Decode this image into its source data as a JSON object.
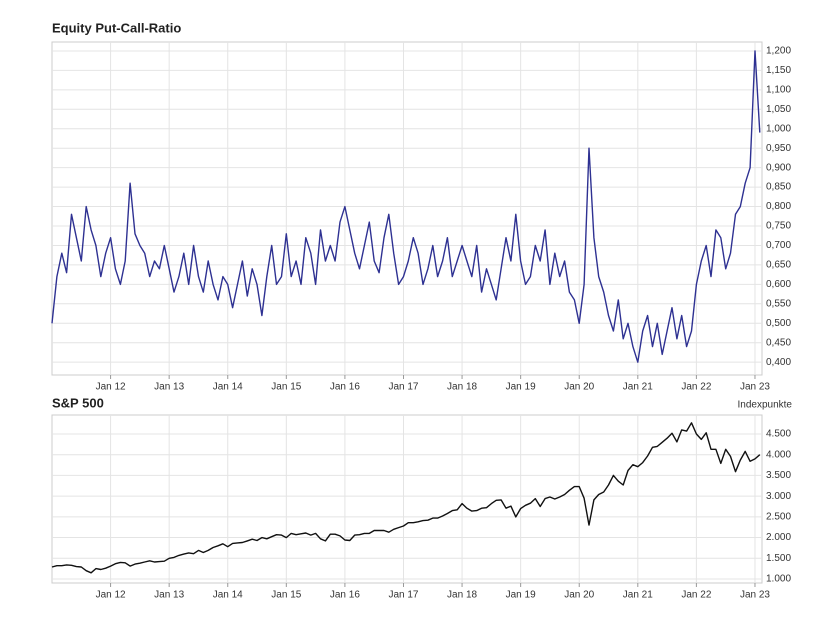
{
  "chart_data": [
    {
      "type": "line",
      "title": "Equity Put-Call-Ratio",
      "color": "#2e3192",
      "grid": true,
      "xlim": [
        2011.0,
        2023.12
      ],
      "ylim": [
        0.367,
        1.223
      ],
      "xticks": [
        {
          "value": 2012,
          "label": "Jan 12"
        },
        {
          "value": 2013,
          "label": "Jan 13"
        },
        {
          "value": 2014,
          "label": "Jan 14"
        },
        {
          "value": 2015,
          "label": "Jan 15"
        },
        {
          "value": 2016,
          "label": "Jan 16"
        },
        {
          "value": 2017,
          "label": "Jan 17"
        },
        {
          "value": 2018,
          "label": "Jan 18"
        },
        {
          "value": 2019,
          "label": "Jan 19"
        },
        {
          "value": 2020,
          "label": "Jan 20"
        },
        {
          "value": 2021,
          "label": "Jan 21"
        },
        {
          "value": 2022,
          "label": "Jan 22"
        },
        {
          "value": 2023,
          "label": "Jan 23"
        }
      ],
      "yticks": [
        {
          "value": 0.4,
          "label": "0,400"
        },
        {
          "value": 0.45,
          "label": "0,450"
        },
        {
          "value": 0.5,
          "label": "0,500"
        },
        {
          "value": 0.55,
          "label": "0,550"
        },
        {
          "value": 0.6,
          "label": "0,600"
        },
        {
          "value": 0.65,
          "label": "0,650"
        },
        {
          "value": 0.7,
          "label": "0,700"
        },
        {
          "value": 0.75,
          "label": "0,750"
        },
        {
          "value": 0.8,
          "label": "0,800"
        },
        {
          "value": 0.85,
          "label": "0,850"
        },
        {
          "value": 0.9,
          "label": "0,900"
        },
        {
          "value": 0.95,
          "label": "0,950"
        },
        {
          "value": 1.0,
          "label": "1,000"
        },
        {
          "value": 1.05,
          "label": "1,050"
        },
        {
          "value": 1.1,
          "label": "1,100"
        },
        {
          "value": 1.15,
          "label": "1,150"
        },
        {
          "value": 1.2,
          "label": "1,200"
        }
      ],
      "x": [
        2011,
        2011.083,
        2011.167,
        2011.25,
        2011.333,
        2011.417,
        2011.5,
        2011.583,
        2011.667,
        2011.75,
        2011.833,
        2011.917,
        2012,
        2012.083,
        2012.167,
        2012.25,
        2012.333,
        2012.417,
        2012.5,
        2012.583,
        2012.667,
        2012.75,
        2012.833,
        2012.917,
        2013,
        2013.083,
        2013.167,
        2013.25,
        2013.333,
        2013.417,
        2013.5,
        2013.583,
        2013.667,
        2013.75,
        2013.833,
        2013.917,
        2014,
        2014.083,
        2014.167,
        2014.25,
        2014.333,
        2014.417,
        2014.5,
        2014.583,
        2014.667,
        2014.75,
        2014.833,
        2014.917,
        2015,
        2015.083,
        2015.167,
        2015.25,
        2015.333,
        2015.417,
        2015.5,
        2015.583,
        2015.667,
        2015.75,
        2015.833,
        2015.917,
        2016,
        2016.083,
        2016.167,
        2016.25,
        2016.333,
        2016.417,
        2016.5,
        2016.583,
        2016.667,
        2016.75,
        2016.833,
        2016.917,
        2017,
        2017.083,
        2017.167,
        2017.25,
        2017.333,
        2017.417,
        2017.5,
        2017.583,
        2017.667,
        2017.75,
        2017.833,
        2017.917,
        2018,
        2018.083,
        2018.167,
        2018.25,
        2018.333,
        2018.417,
        2018.5,
        2018.583,
        2018.667,
        2018.75,
        2018.833,
        2018.917,
        2019,
        2019.083,
        2019.167,
        2019.25,
        2019.333,
        2019.417,
        2019.5,
        2019.583,
        2019.667,
        2019.75,
        2019.833,
        2019.917,
        2020,
        2020.083,
        2020.167,
        2020.25,
        2020.333,
        2020.417,
        2020.5,
        2020.583,
        2020.667,
        2020.75,
        2020.833,
        2020.917,
        2021,
        2021.083,
        2021.167,
        2021.25,
        2021.333,
        2021.417,
        2021.5,
        2021.583,
        2021.667,
        2021.75,
        2021.833,
        2021.917,
        2022,
        2022.083,
        2022.167,
        2022.25,
        2022.333,
        2022.417,
        2022.5,
        2022.583,
        2022.667,
        2022.75,
        2022.833,
        2022.917,
        2023,
        2023.083
      ],
      "values": [
        0.5,
        0.62,
        0.68,
        0.63,
        0.78,
        0.72,
        0.66,
        0.8,
        0.74,
        0.7,
        0.62,
        0.68,
        0.72,
        0.64,
        0.6,
        0.66,
        0.86,
        0.73,
        0.7,
        0.68,
        0.62,
        0.66,
        0.64,
        0.7,
        0.64,
        0.58,
        0.62,
        0.68,
        0.6,
        0.7,
        0.62,
        0.58,
        0.66,
        0.6,
        0.56,
        0.62,
        0.6,
        0.54,
        0.6,
        0.66,
        0.57,
        0.64,
        0.6,
        0.52,
        0.62,
        0.7,
        0.6,
        0.62,
        0.73,
        0.62,
        0.66,
        0.6,
        0.72,
        0.68,
        0.6,
        0.74,
        0.66,
        0.7,
        0.66,
        0.76,
        0.8,
        0.74,
        0.68,
        0.64,
        0.7,
        0.76,
        0.66,
        0.63,
        0.72,
        0.78,
        0.68,
        0.6,
        0.62,
        0.66,
        0.72,
        0.68,
        0.6,
        0.64,
        0.7,
        0.62,
        0.66,
        0.72,
        0.62,
        0.66,
        0.7,
        0.66,
        0.62,
        0.7,
        0.58,
        0.64,
        0.6,
        0.56,
        0.64,
        0.72,
        0.66,
        0.78,
        0.66,
        0.6,
        0.62,
        0.7,
        0.66,
        0.74,
        0.6,
        0.68,
        0.62,
        0.66,
        0.58,
        0.56,
        0.5,
        0.6,
        0.95,
        0.72,
        0.62,
        0.58,
        0.52,
        0.48,
        0.56,
        0.46,
        0.5,
        0.44,
        0.4,
        0.48,
        0.52,
        0.44,
        0.5,
        0.42,
        0.48,
        0.54,
        0.46,
        0.52,
        0.44,
        0.48,
        0.6,
        0.66,
        0.7,
        0.62,
        0.74,
        0.72,
        0.64,
        0.68,
        0.78,
        0.8,
        0.86,
        0.9,
        1.2,
        0.99
      ]
    },
    {
      "type": "line",
      "title": "S&P 500",
      "y_unit": "Indexpunkte",
      "color": "#111111",
      "grid": true,
      "xlim": [
        2011.0,
        2023.12
      ],
      "ylim": [
        903,
        4959
      ],
      "xticks": [
        {
          "value": 2012,
          "label": "Jan 12"
        },
        {
          "value": 2013,
          "label": "Jan 13"
        },
        {
          "value": 2014,
          "label": "Jan 14"
        },
        {
          "value": 2015,
          "label": "Jan 15"
        },
        {
          "value": 2016,
          "label": "Jan 16"
        },
        {
          "value": 2017,
          "label": "Jan 17"
        },
        {
          "value": 2018,
          "label": "Jan 18"
        },
        {
          "value": 2019,
          "label": "Jan 19"
        },
        {
          "value": 2020,
          "label": "Jan 20"
        },
        {
          "value": 2021,
          "label": "Jan 21"
        },
        {
          "value": 2022,
          "label": "Jan 22"
        },
        {
          "value": 2023,
          "label": "Jan 23"
        }
      ],
      "yticks": [
        {
          "value": 1000,
          "label": "1.000"
        },
        {
          "value": 1500,
          "label": "1.500"
        },
        {
          "value": 2000,
          "label": "2.000"
        },
        {
          "value": 2500,
          "label": "2.500"
        },
        {
          "value": 3000,
          "label": "3.000"
        },
        {
          "value": 3500,
          "label": "3.500"
        },
        {
          "value": 4000,
          "label": "4.000"
        },
        {
          "value": 4500,
          "label": "4.500"
        }
      ],
      "x": [
        2011,
        2011.083,
        2011.167,
        2011.25,
        2011.333,
        2011.417,
        2011.5,
        2011.583,
        2011.667,
        2011.75,
        2011.833,
        2011.917,
        2012,
        2012.083,
        2012.167,
        2012.25,
        2012.333,
        2012.417,
        2012.5,
        2012.583,
        2012.667,
        2012.75,
        2012.833,
        2012.917,
        2013,
        2013.083,
        2013.167,
        2013.25,
        2013.333,
        2013.417,
        2013.5,
        2013.583,
        2013.667,
        2013.75,
        2013.833,
        2013.917,
        2014,
        2014.083,
        2014.167,
        2014.25,
        2014.333,
        2014.417,
        2014.5,
        2014.583,
        2014.667,
        2014.75,
        2014.833,
        2014.917,
        2015,
        2015.083,
        2015.167,
        2015.25,
        2015.333,
        2015.417,
        2015.5,
        2015.583,
        2015.667,
        2015.75,
        2015.833,
        2015.917,
        2016,
        2016.083,
        2016.167,
        2016.25,
        2016.333,
        2016.417,
        2016.5,
        2016.583,
        2016.667,
        2016.75,
        2016.833,
        2016.917,
        2017,
        2017.083,
        2017.167,
        2017.25,
        2017.333,
        2017.417,
        2017.5,
        2017.583,
        2017.667,
        2017.75,
        2017.833,
        2017.917,
        2018,
        2018.083,
        2018.167,
        2018.25,
        2018.333,
        2018.417,
        2018.5,
        2018.583,
        2018.667,
        2018.75,
        2018.833,
        2018.917,
        2019,
        2019.083,
        2019.167,
        2019.25,
        2019.333,
        2019.417,
        2019.5,
        2019.583,
        2019.667,
        2019.75,
        2019.833,
        2019.917,
        2020,
        2020.083,
        2020.167,
        2020.25,
        2020.333,
        2020.417,
        2020.5,
        2020.583,
        2020.667,
        2020.75,
        2020.833,
        2020.917,
        2021,
        2021.083,
        2021.167,
        2021.25,
        2021.333,
        2021.417,
        2021.5,
        2021.583,
        2021.667,
        2021.75,
        2021.833,
        2021.917,
        2022,
        2022.083,
        2022.167,
        2022.25,
        2022.333,
        2022.417,
        2022.5,
        2022.583,
        2022.667,
        2022.75,
        2022.833,
        2022.917,
        2023,
        2023.083
      ],
      "values": [
        1290,
        1320,
        1320,
        1340,
        1330,
        1300,
        1290,
        1200,
        1150,
        1250,
        1230,
        1260,
        1310,
        1370,
        1400,
        1390,
        1310,
        1360,
        1380,
        1410,
        1440,
        1410,
        1420,
        1430,
        1500,
        1520,
        1570,
        1600,
        1630,
        1610,
        1690,
        1640,
        1690,
        1760,
        1800,
        1850,
        1780,
        1860,
        1870,
        1880,
        1920,
        1960,
        1930,
        2000,
        1970,
        2020,
        2070,
        2060,
        2000,
        2100,
        2070,
        2090,
        2110,
        2060,
        2100,
        1970,
        1920,
        2080,
        2080,
        2040,
        1940,
        1930,
        2060,
        2070,
        2100,
        2100,
        2170,
        2170,
        2170,
        2130,
        2200,
        2240,
        2280,
        2360,
        2360,
        2380,
        2410,
        2420,
        2470,
        2470,
        2520,
        2580,
        2650,
        2670,
        2820,
        2710,
        2640,
        2650,
        2710,
        2720,
        2820,
        2900,
        2910,
        2710,
        2760,
        2500,
        2700,
        2780,
        2830,
        2940,
        2750,
        2940,
        2980,
        2930,
        2980,
        3040,
        3140,
        3230,
        3230,
        2950,
        2300,
        2910,
        3040,
        3100,
        3270,
        3500,
        3360,
        3270,
        3620,
        3760,
        3710,
        3810,
        3970,
        4180,
        4200,
        4300,
        4400,
        4520,
        4310,
        4600,
        4570,
        4770,
        4500,
        4370,
        4530,
        4130,
        4130,
        3790,
        4130,
        3960,
        3590,
        3870,
        4080,
        3840,
        3900,
        4000
      ]
    }
  ]
}
